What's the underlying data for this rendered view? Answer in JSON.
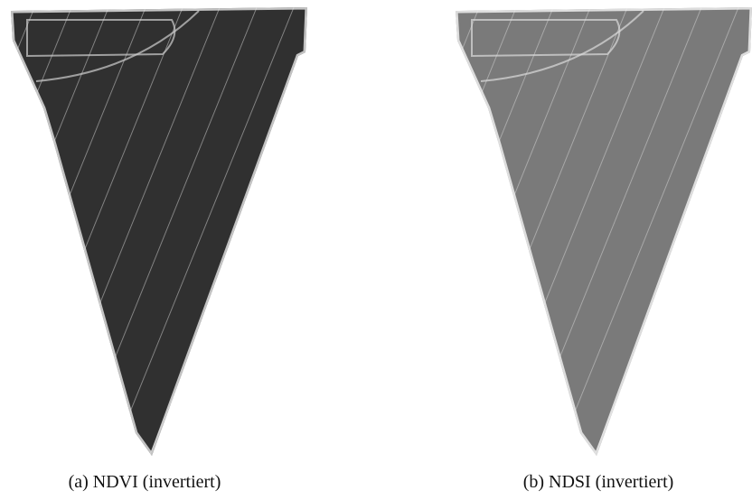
{
  "figure": {
    "panels": [
      {
        "caption": "(a) NDVI (invertiert)"
      },
      {
        "caption": "(b) NDSI (invertiert)"
      }
    ]
  }
}
